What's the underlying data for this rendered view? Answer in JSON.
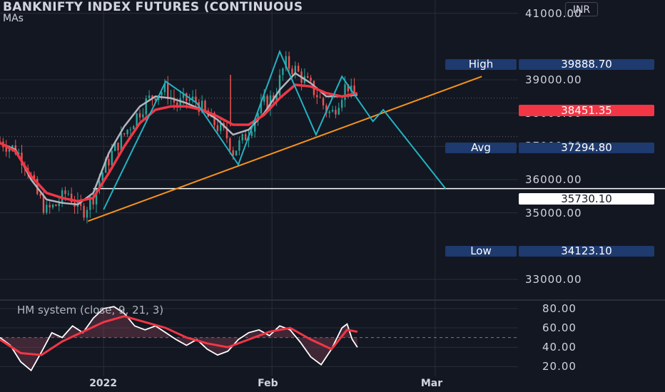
{
  "header": {
    "title": "BANKNIFTY INDEX FUTURES (CONTINUOUS",
    "subtitle": "MAs",
    "currency": "INR"
  },
  "indicator": {
    "label": "HM system (close, 9, 21, 3)"
  },
  "stats": {
    "high_label": "High",
    "high_value": "39888.70",
    "avg_label": "Avg",
    "avg_value": "37294.80",
    "low_label": "Low",
    "low_value": "34123.10",
    "last_price": "38451.35",
    "target_price": "35730.10"
  },
  "colors": {
    "background": "#131722",
    "up_candle": "#26a69a",
    "down_candle": "#ef5350",
    "ma_fast": "#b2b5be",
    "ma_slow": "#f23645",
    "pattern": "#22b3c3",
    "trendline": "#f7931a",
    "stat_box": "#1e3a6e",
    "last_price_tag": "#f23645"
  },
  "chart_data": {
    "type": "line",
    "y_axis": {
      "range": [
        32400,
        41400
      ],
      "ticks": [
        "41000.00",
        "39000.00",
        "38000.00",
        "37000.00",
        "36000.00",
        "35000.00",
        "33000.00"
      ]
    },
    "x_axis": {
      "ticks": [
        "2022",
        "Feb",
        "Mar"
      ]
    },
    "indicator_axis": {
      "range": [
        10,
        88
      ],
      "ticks": [
        "80.00",
        "60.00",
        "40.00",
        "20.00"
      ]
    },
    "price_path": [
      [
        0,
        37150
      ],
      [
        3,
        36900
      ],
      [
        5,
        36500
      ],
      [
        7,
        35600
      ],
      [
        9,
        35050
      ],
      [
        11,
        35250
      ],
      [
        13,
        35650
      ],
      [
        15,
        35150
      ],
      [
        16,
        35050
      ],
      [
        18,
        35500
      ],
      [
        20,
        36300
      ],
      [
        22,
        36900
      ],
      [
        25,
        37600
      ],
      [
        28,
        38300
      ],
      [
        30,
        38600
      ],
      [
        32,
        38700
      ],
      [
        34,
        38250
      ],
      [
        36,
        38400
      ],
      [
        38,
        38350
      ],
      [
        40,
        37900
      ],
      [
        42,
        37600
      ],
      [
        44,
        37250
      ],
      [
        45,
        36850
      ],
      [
        47,
        37200
      ],
      [
        49,
        37800
      ],
      [
        51,
        38300
      ],
      [
        53,
        38500
      ],
      [
        55,
        39500
      ],
      [
        57,
        39300
      ],
      [
        59,
        38950
      ],
      [
        61,
        38600
      ],
      [
        63,
        38100
      ],
      [
        64,
        37950
      ],
      [
        66,
        38600
      ],
      [
        67,
        38900
      ],
      [
        68,
        38500
      ],
      [
        69,
        38450
      ]
    ],
    "ma_fast": [
      [
        0,
        37100
      ],
      [
        3,
        36900
      ],
      [
        6,
        36000
      ],
      [
        9,
        35400
      ],
      [
        12,
        35300
      ],
      [
        15,
        35250
      ],
      [
        18,
        35600
      ],
      [
        21,
        36800
      ],
      [
        24,
        37600
      ],
      [
        27,
        38200
      ],
      [
        30,
        38500
      ],
      [
        33,
        38450
      ],
      [
        36,
        38300
      ],
      [
        39,
        38100
      ],
      [
        42,
        37800
      ],
      [
        45,
        37350
      ],
      [
        48,
        37500
      ],
      [
        51,
        38000
      ],
      [
        54,
        38700
      ],
      [
        57,
        39200
      ],
      [
        60,
        38900
      ],
      [
        63,
        38500
      ],
      [
        66,
        38500
      ],
      [
        69,
        38550
      ]
    ],
    "ma_slow": [
      [
        0,
        37100
      ],
      [
        3,
        36850
      ],
      [
        6,
        36100
      ],
      [
        9,
        35600
      ],
      [
        12,
        35450
      ],
      [
        15,
        35350
      ],
      [
        18,
        35450
      ],
      [
        21,
        36200
      ],
      [
        24,
        37000
      ],
      [
        27,
        37700
      ],
      [
        30,
        38100
      ],
      [
        33,
        38200
      ],
      [
        36,
        38200
      ],
      [
        39,
        38100
      ],
      [
        42,
        37900
      ],
      [
        45,
        37650
      ],
      [
        48,
        37650
      ],
      [
        51,
        37950
      ],
      [
        54,
        38450
      ],
      [
        57,
        38850
      ],
      [
        60,
        38800
      ],
      [
        63,
        38600
      ],
      [
        66,
        38500
      ],
      [
        69,
        38600
      ]
    ],
    "pattern_zigzag": [
      [
        20,
        35100
      ],
      [
        32,
        38950
      ],
      [
        38,
        38300
      ],
      [
        46,
        36450
      ],
      [
        54,
        39850
      ],
      [
        61,
        37350
      ],
      [
        66,
        39100
      ],
      [
        72,
        37750
      ],
      [
        74,
        38100
      ],
      [
        86,
        35730
      ]
    ],
    "trendline": [
      [
        17,
        34750
      ],
      [
        93,
        39100
      ]
    ],
    "levels": {
      "avg": 37294.8,
      "target": 35730.1,
      "last": 38451.35
    },
    "indicator_series": [
      [
        0,
        50
      ],
      [
        2,
        42
      ],
      [
        4,
        25
      ],
      [
        6,
        16
      ],
      [
        8,
        35
      ],
      [
        10,
        55
      ],
      [
        12,
        50
      ],
      [
        14,
        62
      ],
      [
        16,
        55
      ],
      [
        18,
        70
      ],
      [
        20,
        80
      ],
      [
        22,
        82
      ],
      [
        24,
        75
      ],
      [
        26,
        62
      ],
      [
        28,
        58
      ],
      [
        30,
        62
      ],
      [
        32,
        55
      ],
      [
        34,
        48
      ],
      [
        36,
        42
      ],
      [
        38,
        48
      ],
      [
        40,
        38
      ],
      [
        42,
        32
      ],
      [
        44,
        36
      ],
      [
        46,
        48
      ],
      [
        48,
        55
      ],
      [
        50,
        58
      ],
      [
        52,
        52
      ],
      [
        54,
        62
      ],
      [
        56,
        58
      ],
      [
        58,
        45
      ],
      [
        60,
        30
      ],
      [
        62,
        22
      ],
      [
        64,
        38
      ],
      [
        66,
        60
      ],
      [
        67,
        64
      ],
      [
        68,
        48
      ],
      [
        69,
        40
      ]
    ],
    "indicator_signal": [
      [
        0,
        48
      ],
      [
        4,
        34
      ],
      [
        8,
        32
      ],
      [
        12,
        46
      ],
      [
        16,
        56
      ],
      [
        20,
        66
      ],
      [
        24,
        72
      ],
      [
        28,
        66
      ],
      [
        32,
        60
      ],
      [
        36,
        50
      ],
      [
        40,
        44
      ],
      [
        44,
        40
      ],
      [
        48,
        48
      ],
      [
        52,
        56
      ],
      [
        56,
        60
      ],
      [
        60,
        48
      ],
      [
        64,
        38
      ],
      [
        67,
        58
      ],
      [
        69,
        56
      ]
    ],
    "indicator_midline": 50
  }
}
